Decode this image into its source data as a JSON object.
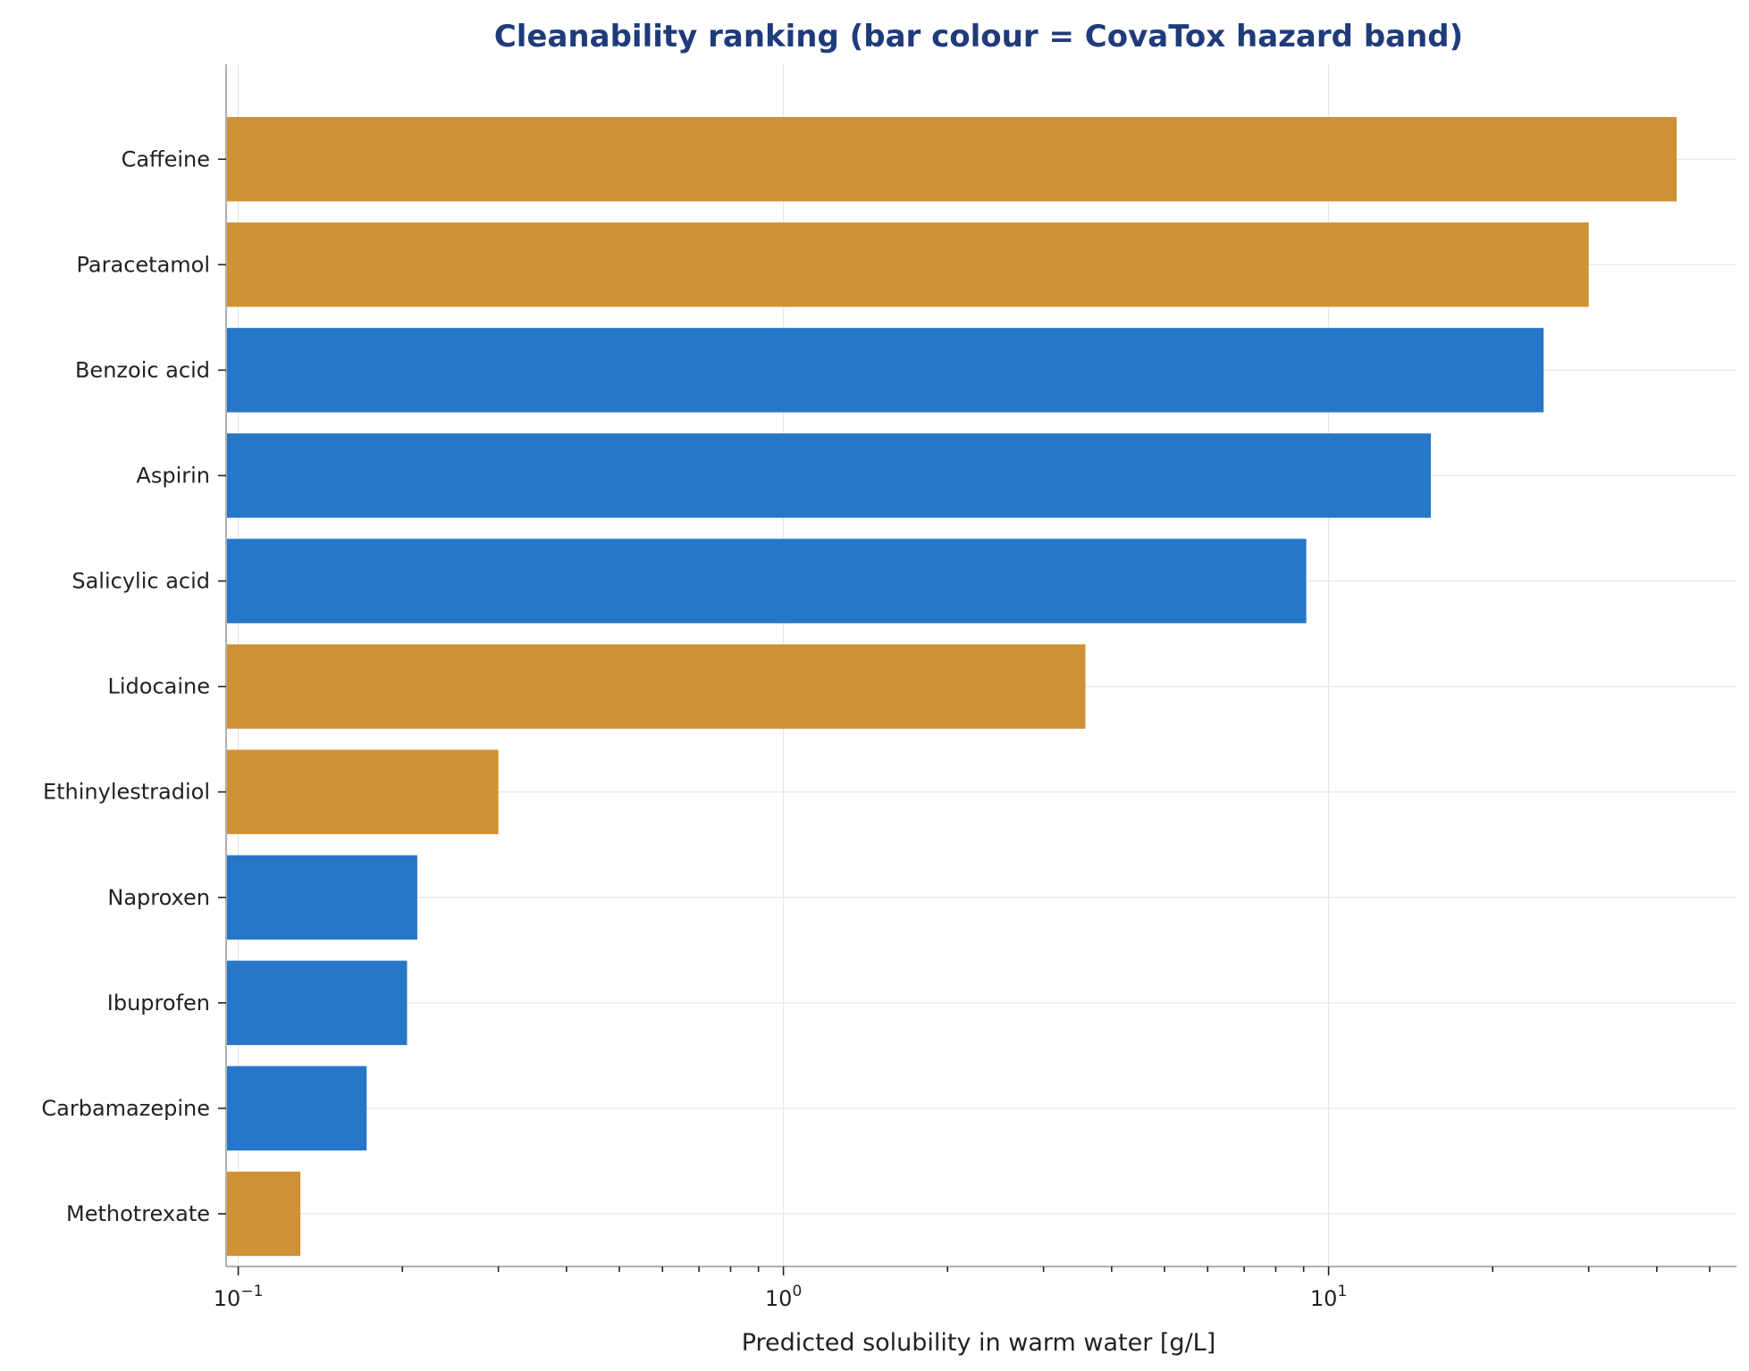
{
  "chart_data": {
    "type": "bar",
    "orientation": "horizontal",
    "title": "Cleanability ranking (bar colour = CovaTox hazard band)",
    "xlabel": "Predicted solubility in warm water [g/L]",
    "ylabel": "",
    "x_scale": "log",
    "xlim": [
      0.095,
      56
    ],
    "x_ticks": [
      {
        "value": 0.1,
        "base": "10",
        "exp": "−1"
      },
      {
        "value": 1,
        "base": "10",
        "exp": "0"
      },
      {
        "value": 10,
        "base": "10",
        "exp": "1"
      }
    ],
    "grid": true,
    "colors": {
      "orange": "#cf9133",
      "blue": "#2677c7"
    },
    "categories": [
      "Caffeine",
      "Paracetamol",
      "Benzoic acid",
      "Aspirin",
      "Salicylic acid",
      "Lidocaine",
      "Ethinylestradiol",
      "Naproxen",
      "Ibuprofen",
      "Carbamazepine",
      "Methotrexate"
    ],
    "values": [
      43.5,
      30.0,
      24.8,
      15.4,
      9.1,
      3.58,
      0.3,
      0.213,
      0.204,
      0.172,
      0.13
    ],
    "bar_colors": [
      "#cf9133",
      "#cf9133",
      "#2677c7",
      "#2677c7",
      "#2677c7",
      "#cf9133",
      "#cf9133",
      "#2677c7",
      "#2677c7",
      "#2677c7",
      "#cf9133"
    ]
  }
}
